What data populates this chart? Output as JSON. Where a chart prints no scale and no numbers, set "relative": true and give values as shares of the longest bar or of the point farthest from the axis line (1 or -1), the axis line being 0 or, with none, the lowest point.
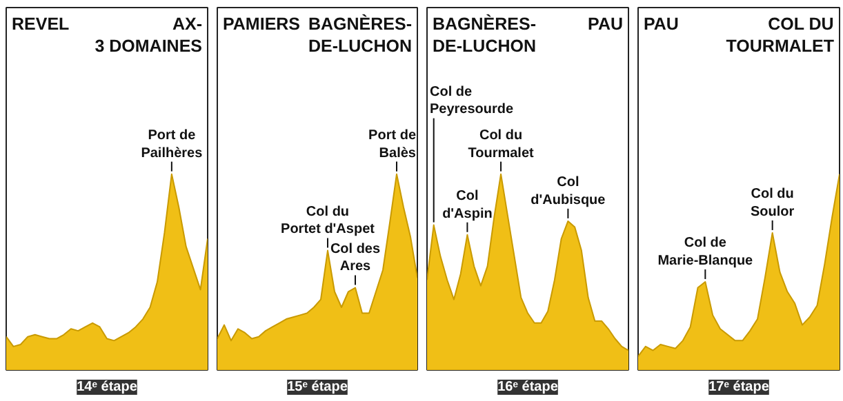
{
  "chart_data": [
    {
      "type": "area",
      "relative": true,
      "xlabel": "14ᵉ étape",
      "categories": [
        null,
        null,
        null,
        null,
        null,
        null,
        null,
        null,
        null,
        null,
        null,
        null,
        null,
        null,
        null,
        null,
        null,
        null,
        null,
        null,
        null,
        null,
        null,
        null,
        null,
        null,
        null,
        null,
        null
      ],
      "series": [
        {
          "color": "#f0bf16",
          "values": [
            0.17,
            0.12,
            0.13,
            0.17,
            0.18,
            0.17,
            0.16,
            0.16,
            0.18,
            0.21,
            0.2,
            0.22,
            0.24,
            0.22,
            0.16,
            0.15,
            0.17,
            0.19,
            0.22,
            0.26,
            0.32,
            0.45,
            0.7,
            1.0,
            0.83,
            0.63,
            0.52,
            0.41,
            0.67
          ]
        }
      ],
      "annotations": [
        "REVEL",
        "AX-\n3 DOMAINES",
        {
          "text": "Port de\nPailhères",
          "y": 1.0
        }
      ]
    },
    {
      "type": "area",
      "relative": true,
      "xlabel": "15ᵉ étape",
      "categories": [
        null,
        null,
        null,
        null,
        null,
        null,
        null,
        null,
        null,
        null,
        null,
        null,
        null,
        null,
        null,
        null,
        null,
        null,
        null,
        null,
        null,
        null,
        null,
        null,
        null,
        null,
        null,
        null,
        null,
        null
      ],
      "series": [
        {
          "color": "#f0bf16",
          "values": [
            0.16,
            0.23,
            0.15,
            0.21,
            0.19,
            0.16,
            0.17,
            0.2,
            0.22,
            0.24,
            0.26,
            0.27,
            0.28,
            0.29,
            0.32,
            0.36,
            0.61,
            0.4,
            0.32,
            0.4,
            0.42,
            0.29,
            0.29,
            0.4,
            0.51,
            0.75,
            1.0,
            0.83,
            0.68,
            0.47
          ]
        }
      ],
      "annotations": [
        "PAMIERS",
        "BAGNÈRES-\nDE-LUCHON",
        {
          "text": "Col du\nPortet d'Aspet",
          "y": 0.61
        },
        {
          "text": "Col des\nAres",
          "y": 0.42
        },
        {
          "text": "Port de\nBalès",
          "y": 1.0
        }
      ]
    },
    {
      "type": "area",
      "relative": true,
      "xlabel": "16ᵉ étape",
      "categories": [
        null,
        null,
        null,
        null,
        null,
        null,
        null,
        null,
        null,
        null,
        null,
        null,
        null,
        null,
        null,
        null,
        null,
        null,
        null,
        null,
        null,
        null,
        null,
        null,
        null,
        null,
        null,
        null,
        null,
        null,
        null
      ],
      "series": [
        {
          "color": "#f0bf16",
          "values": [
            0.46,
            0.74,
            0.58,
            0.46,
            0.36,
            0.49,
            0.69,
            0.53,
            0.43,
            0.53,
            0.78,
            1.0,
            0.79,
            0.58,
            0.37,
            0.29,
            0.24,
            0.24,
            0.3,
            0.46,
            0.67,
            0.76,
            0.73,
            0.61,
            0.37,
            0.25,
            0.25,
            0.21,
            0.16,
            0.12,
            0.1
          ]
        }
      ],
      "annotations": [
        "BAGNÈRES-\nDE-LUCHON",
        "PAU",
        "Col de\nPeyresourde",
        {
          "text": "Col\nd'Aspin",
          "y": 0.69
        },
        {
          "text": "Col du\nTourmalet",
          "y": 1.0
        },
        {
          "text": "Col\nd'Aubisque",
          "y": 0.76
        }
      ]
    },
    {
      "type": "area",
      "relative": true,
      "xlabel": "17ᵉ étape",
      "categories": [
        null,
        null,
        null,
        null,
        null,
        null,
        null,
        null,
        null,
        null,
        null,
        null,
        null,
        null,
        null,
        null,
        null,
        null,
        null,
        null,
        null,
        null,
        null,
        null,
        null,
        null,
        null,
        null
      ],
      "series": [
        {
          "color": "#f0bf16",
          "values": [
            0.07,
            0.12,
            0.1,
            0.13,
            0.12,
            0.11,
            0.15,
            0.22,
            0.42,
            0.45,
            0.28,
            0.21,
            0.18,
            0.15,
            0.15,
            0.2,
            0.26,
            0.47,
            0.7,
            0.5,
            0.4,
            0.34,
            0.23,
            0.27,
            0.33,
            0.54,
            0.78,
            1.0
          ]
        }
      ],
      "annotations": [
        "PAU",
        "COL DU\nTOURMALET",
        {
          "text": "Col de\nMarie-Blanque",
          "y": 0.45
        },
        {
          "text": "Col du\nSoulor",
          "y": 0.7
        }
      ]
    }
  ]
}
